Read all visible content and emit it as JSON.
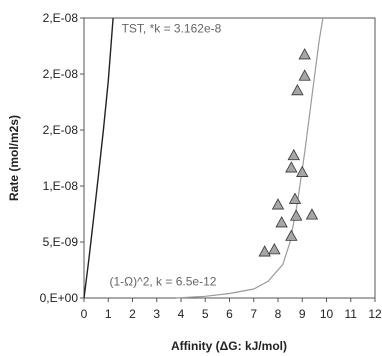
{
  "chart_data": {
    "type": "scatter",
    "xlabel": "Affinity (ΔG: kJ/mol)",
    "ylabel": "Rate (mol/m2s)",
    "xlim": [
      0,
      12
    ],
    "ylim": [
      0,
      2.5e-08
    ],
    "x_ticks": [
      "0",
      "1",
      "2",
      "3",
      "4",
      "5",
      "6",
      "7",
      "8",
      "9",
      "10",
      "11",
      "12"
    ],
    "y_ticks": [
      {
        "value": 0,
        "label": "0,E+00"
      },
      {
        "value": 5e-09,
        "label": "5,E-09"
      },
      {
        "value": 1e-08,
        "label": "1,E-08"
      },
      {
        "value": 1.5e-08,
        "label": "2,E-08"
      },
      {
        "value": 2e-08,
        "label": "2,E-08"
      },
      {
        "value": 2.5e-08,
        "label": "2,E-08"
      }
    ],
    "grid": false,
    "legend": "none",
    "annotations": [
      {
        "text": "TST, *k = 3.162e-8",
        "x": 1.55,
        "y": 2.37e-08
      },
      {
        "text": "(1-Ω)^2, k = 6.5e-12",
        "x": 1.05,
        "y": 1.1e-09
      }
    ],
    "series": [
      {
        "kind": "line",
        "label_ref": "TST, *k = 3.162e-8",
        "color": "#222222",
        "x": [
          0,
          0.2,
          0.4,
          0.6,
          0.8,
          1.0,
          1.2
        ],
        "y": [
          0,
          3.4e-09,
          7.2e-09,
          1.1e-08,
          1.5e-08,
          1.94e-08,
          2.5e-08
        ]
      },
      {
        "kind": "line",
        "label_ref": "(1-Ω)^2, k = 6.5e-12",
        "color": "#9a9a9a",
        "x": [
          3.8,
          5,
          6,
          7,
          7.6,
          8.2,
          8.5,
          8.8,
          9.1,
          9.4,
          9.7,
          9.85
        ],
        "y": [
          0,
          1.5e-10,
          4e-10,
          8e-10,
          1.5e-09,
          3e-09,
          5e-09,
          8.5e-09,
          1.3e-08,
          1.8e-08,
          2.3e-08,
          2.5e-08
        ]
      },
      {
        "kind": "points",
        "marker": "triangle",
        "fill": "#a6a6a6",
        "stroke": "#333333",
        "x": [
          9.1,
          9.1,
          8.8,
          8.65,
          8.55,
          9.0,
          8.7,
          8.0,
          8.75,
          8.15,
          9.4,
          8.55,
          7.85,
          7.45
        ],
        "y": [
          2.17e-08,
          1.98e-08,
          1.85e-08,
          1.27e-08,
          1.16e-08,
          1.12e-08,
          8.8e-09,
          8.3e-09,
          7.3e-09,
          6.7e-09,
          7.4e-09,
          5.5e-09,
          4.3e-09,
          4.1e-09
        ]
      }
    ]
  }
}
